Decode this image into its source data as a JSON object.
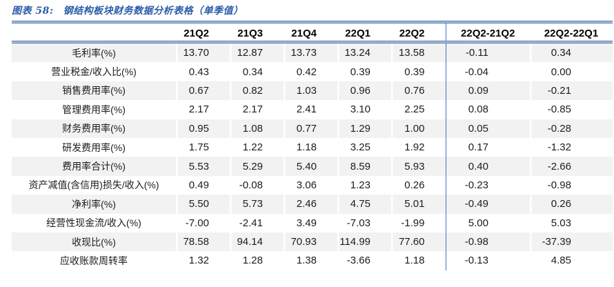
{
  "title": {
    "prefix": "图表 58:",
    "text": "钢结构板块财务数据分析表格（单季值）"
  },
  "table": {
    "columns": [
      "",
      "21Q2",
      "21Q3",
      "21Q4",
      "22Q1",
      "22Q2",
      "22Q2-21Q2",
      "22Q2-22Q1"
    ],
    "rows": [
      {
        "label": "毛利率(%)",
        "values": [
          "13.70",
          "12.87",
          "13.73",
          "13.24",
          "13.58",
          "-0.11",
          "0.34"
        ]
      },
      {
        "label": "营业税金/收入比(%)",
        "values": [
          "0.43",
          "0.34",
          "0.42",
          "0.39",
          "0.39",
          "-0.04",
          "0.00"
        ]
      },
      {
        "label": "销售费用率(%)",
        "values": [
          "0.67",
          "0.82",
          "1.03",
          "0.96",
          "0.76",
          "0.09",
          "-0.21"
        ]
      },
      {
        "label": "管理费用率(%)",
        "values": [
          "2.17",
          "2.17",
          "2.41",
          "3.10",
          "2.25",
          "0.08",
          "-0.85"
        ]
      },
      {
        "label": "财务费用率(%)",
        "values": [
          "0.95",
          "1.08",
          "0.77",
          "1.29",
          "1.00",
          "0.05",
          "-0.28"
        ]
      },
      {
        "label": "研发费用率(%)",
        "values": [
          "1.75",
          "1.22",
          "1.18",
          "3.25",
          "1.92",
          "0.17",
          "-1.32"
        ]
      },
      {
        "label": "费用率合计(%)",
        "values": [
          "5.53",
          "5.29",
          "5.40",
          "8.59",
          "5.93",
          "0.40",
          "-2.66"
        ]
      },
      {
        "label": "资产减值(含信用)损失/收入(%)",
        "values": [
          "0.49",
          "-0.08",
          "3.06",
          "1.23",
          "0.26",
          "-0.23",
          "-0.98"
        ]
      },
      {
        "label": "净利率(%)",
        "values": [
          "5.50",
          "5.73",
          "2.46",
          "4.75",
          "5.01",
          "-0.49",
          "0.26"
        ]
      },
      {
        "label": "经营性现金流/收入(%)",
        "values": [
          "-7.00",
          "-2.41",
          "3.49",
          "-7.03",
          "-1.99",
          "5.00",
          "5.03"
        ]
      },
      {
        "label": "收现比(%)",
        "values": [
          "78.58",
          "94.14",
          "70.93",
          "114.99",
          "77.60",
          "-0.98",
          "-37.39"
        ]
      },
      {
        "label": "应收账款周转率",
        "values": [
          "1.32",
          "1.28",
          "1.38",
          "-3.66",
          "1.18",
          "-0.13",
          "4.85"
        ]
      }
    ]
  },
  "colors": {
    "title_blue": "#2a5caa",
    "divider_blue": "#4472c4",
    "rule_edge_blue": "#4e73a8",
    "rule_fill_blue": "#aec4e5",
    "row_shade_gray": "#f2f2f2",
    "text": "#1c1c1c"
  }
}
